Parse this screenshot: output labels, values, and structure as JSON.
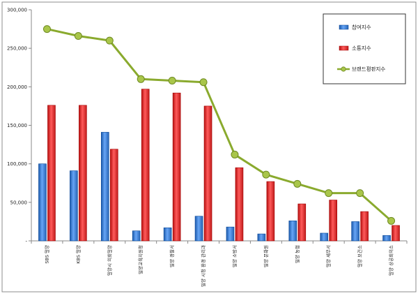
{
  "chart_data": {
    "type": "bar",
    "title": "",
    "xlabel": "",
    "ylabel": "",
    "ylim": [
      0,
      300000
    ],
    "yticks": [
      0,
      50000,
      100000,
      150000,
      200000,
      250000,
      300000
    ],
    "ytick_labels": [
      "-",
      "50,000",
      "100,000",
      "150,000",
      "200,000",
      "250,000",
      "300,000"
    ],
    "grid": false,
    "legend_position": "top-right",
    "categories": [
      "SBS 밀양",
      "KBS 밀양",
      "밀양시 의회밀양",
      "밀양교육지원청",
      "밀양 경찰서",
      "밀양 시청 환경 관리과",
      "밀양 소방서",
      "밀양 문화원",
      "밀양 농협",
      "밀양 세무서",
      "밀양 보건소",
      "밀양 상공회의소"
    ],
    "series": [
      {
        "name": "참여지수",
        "type": "bar",
        "color": "#3a78c9",
        "values": [
          100000,
          91000,
          141000,
          13000,
          17000,
          32000,
          18000,
          9000,
          26000,
          10000,
          25000,
          7000
        ]
      },
      {
        "name": "소통지수",
        "type": "bar",
        "color": "#d42e2e",
        "values": [
          176000,
          176000,
          119000,
          197000,
          192000,
          175000,
          95000,
          77000,
          48000,
          53000,
          38000,
          20000
        ]
      },
      {
        "name": "브랜드평판지수",
        "type": "line",
        "color": "#8aaa2e",
        "values": [
          275000,
          266000,
          260000,
          210000,
          208000,
          206000,
          112000,
          86000,
          74000,
          62000,
          62000,
          26000
        ]
      }
    ]
  }
}
